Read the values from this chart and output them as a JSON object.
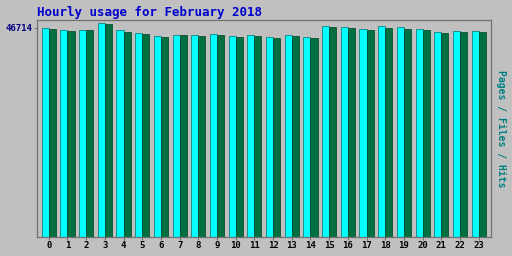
{
  "title": "Hourly usage for February 2018",
  "title_color": "#0000cc",
  "title_fontsize": 9,
  "background_color": "#c0c0c0",
  "plot_background_color": "#c0c0c0",
  "ylabel_right": "Pages / Files / Hits",
  "ylabel_right_color": "#008080",
  "ylabel_fontsize": 7,
  "ytick_label": "46714",
  "ytick_color": "#000080",
  "xtick_labels": [
    "0",
    "1",
    "2",
    "3",
    "4",
    "5",
    "6",
    "7",
    "8",
    "9",
    "10",
    "11",
    "12",
    "13",
    "14",
    "15",
    "16",
    "17",
    "18",
    "19",
    "20",
    "21",
    "22",
    "23"
  ],
  "ylim_max": 48500,
  "bar_width": 0.38,
  "hits_color": "#00ffff",
  "hits_edge_color": "#007070",
  "pages_color": "#007040",
  "pages_edge_color": "#004020",
  "hits_values": [
    46714,
    46200,
    46300,
    47800,
    46100,
    45600,
    44900,
    45200,
    45100,
    45300,
    44800,
    45000,
    44600,
    45000,
    44700,
    47200,
    46900,
    46500,
    47000,
    46800,
    46400,
    45700,
    45900,
    46000
  ],
  "pages_values": [
    46400,
    46000,
    46100,
    47500,
    45800,
    45400,
    44700,
    45000,
    44900,
    45100,
    44600,
    44800,
    44400,
    44800,
    44500,
    46900,
    46600,
    46200,
    46700,
    46500,
    46100,
    45500,
    45700,
    45800
  ]
}
